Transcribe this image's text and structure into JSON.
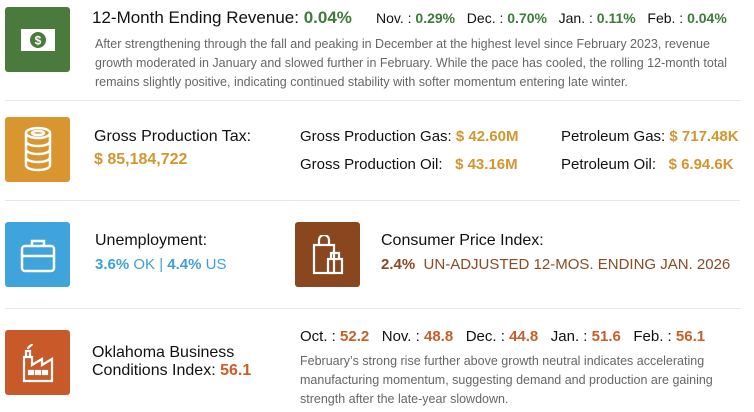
{
  "colors": {
    "revenue": "#4a7a3c",
    "gpt": "#d9952f",
    "unemployment": "#3fa3dc",
    "cpi": "#8a461f",
    "obci": "#c85a2a"
  },
  "revenue": {
    "icon": "dollar-bill-icon",
    "label": "12-Month Ending Revenue:",
    "value": "0.04%",
    "months": [
      {
        "label": "Nov. :",
        "value": "0.29%"
      },
      {
        "label": "Dec. :",
        "value": "0.70%"
      },
      {
        "label": "Jan. :",
        "value": "0.11%"
      },
      {
        "label": "Feb. :",
        "value": "0.04%"
      }
    ],
    "description": "After strengthening through the fall and peaking in December at the highest level since February 2023, revenue growth moderated in January and slowed further in February. While the pace has cooled, the rolling 12-month total remains slightly positive, indicating continued stability with softer momentum entering late winter."
  },
  "gpt": {
    "icon": "coin-stack-icon",
    "label": "Gross Production Tax:",
    "value": "$ 85,184,722",
    "items": [
      {
        "label": "Gross Production Gas:",
        "value": "$ 42.60M"
      },
      {
        "label": "Petroleum Gas:",
        "value": "$ 717.48K"
      },
      {
        "label": "Gross Production Oil:",
        "value": "$ 43.16M"
      },
      {
        "label": "Petroleum Oil:",
        "value": "$ 6.94.6K"
      }
    ]
  },
  "unemployment": {
    "icon": "briefcase-icon",
    "label": "Unemployment:",
    "ok": "3.6%",
    "ok_suffix": "OK |",
    "us": "4.4%",
    "us_suffix": "US"
  },
  "cpi": {
    "icon": "grocery-bag-icon",
    "label": "Consumer Price Index:",
    "value": "2.4%",
    "note": "UN-ADJUSTED 12-MOS. ENDING JAN. 2026"
  },
  "obci": {
    "icon": "factory-icon",
    "label_line1": "Oklahoma Business",
    "label_line2": "Conditions Index:",
    "value": "56.1",
    "months": [
      {
        "label": "Oct. :",
        "value": "52.2"
      },
      {
        "label": "Nov. :",
        "value": "48.8"
      },
      {
        "label": "Dec. :",
        "value": "44.8"
      },
      {
        "label": "Jan. :",
        "value": "51.6"
      },
      {
        "label": "Feb. :",
        "value": "56.1"
      }
    ],
    "description": "February’s strong rise further above growth neutral indicates accelerating manufacturing momentum, suggesting demand and production are gaining strength after the late-year slowdown."
  }
}
